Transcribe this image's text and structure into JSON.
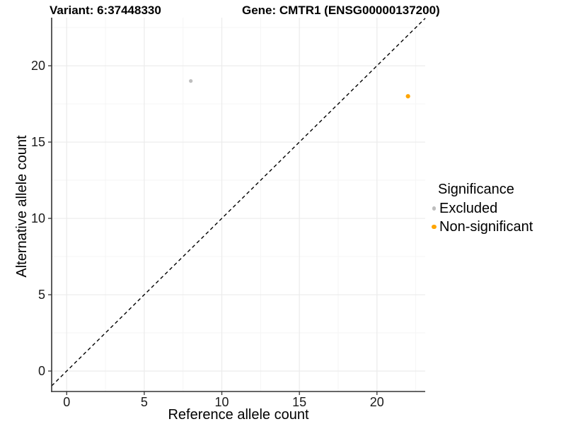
{
  "titles": {
    "variant": "Variant: 6:37448330",
    "gene": "Gene: CMTR1 (ENSG00000137200)"
  },
  "legend": {
    "title": "Significance",
    "items": [
      {
        "label": "Excluded",
        "color": "#BEBEBE",
        "radius": 2.6
      },
      {
        "label": "Non-significant",
        "color": "#FFA500",
        "radius": 3.1
      }
    ]
  },
  "colors": {
    "background": "#ffffff",
    "grid_major": "#ebebeb",
    "grid_minor": "#f5f5f5",
    "axis_line": "#333333",
    "tick_text": "#1a1a1a",
    "title_text": "#000000",
    "identity_line": "#000000",
    "excluded_point": "#BEBEBE",
    "non_significant_point": "#FFA500"
  },
  "chart_data": {
    "type": "scatter",
    "title_left": "Variant: 6:37448330",
    "title_right": "Gene: CMTR1 (ENSG00000137200)",
    "xlabel": "Reference allele count",
    "ylabel": "Alternative allele count",
    "xlim": [
      -0.97,
      23.11
    ],
    "ylim": [
      -1.34,
      23.15
    ],
    "x_ticks": [
      0,
      5,
      10,
      15,
      20
    ],
    "y_ticks": [
      0,
      5,
      10,
      15,
      20
    ],
    "x_minor_ticks": [
      2.5,
      7.5,
      12.5,
      17.5,
      22.5
    ],
    "y_minor_ticks": [
      2.5,
      7.5,
      12.5,
      17.5,
      22.5
    ],
    "grid": true,
    "legend_position": "right",
    "series": [
      {
        "name": "Excluded",
        "color": "#BEBEBE",
        "radius": 2.6,
        "points": [
          [
            8,
            19
          ]
        ]
      },
      {
        "name": "Non-significant",
        "color": "#FFA500",
        "radius": 3.1,
        "points": [
          [
            22,
            18
          ]
        ]
      }
    ],
    "identity_line": {
      "equation": "y = x",
      "style": "dashed",
      "color": "#000000"
    }
  }
}
